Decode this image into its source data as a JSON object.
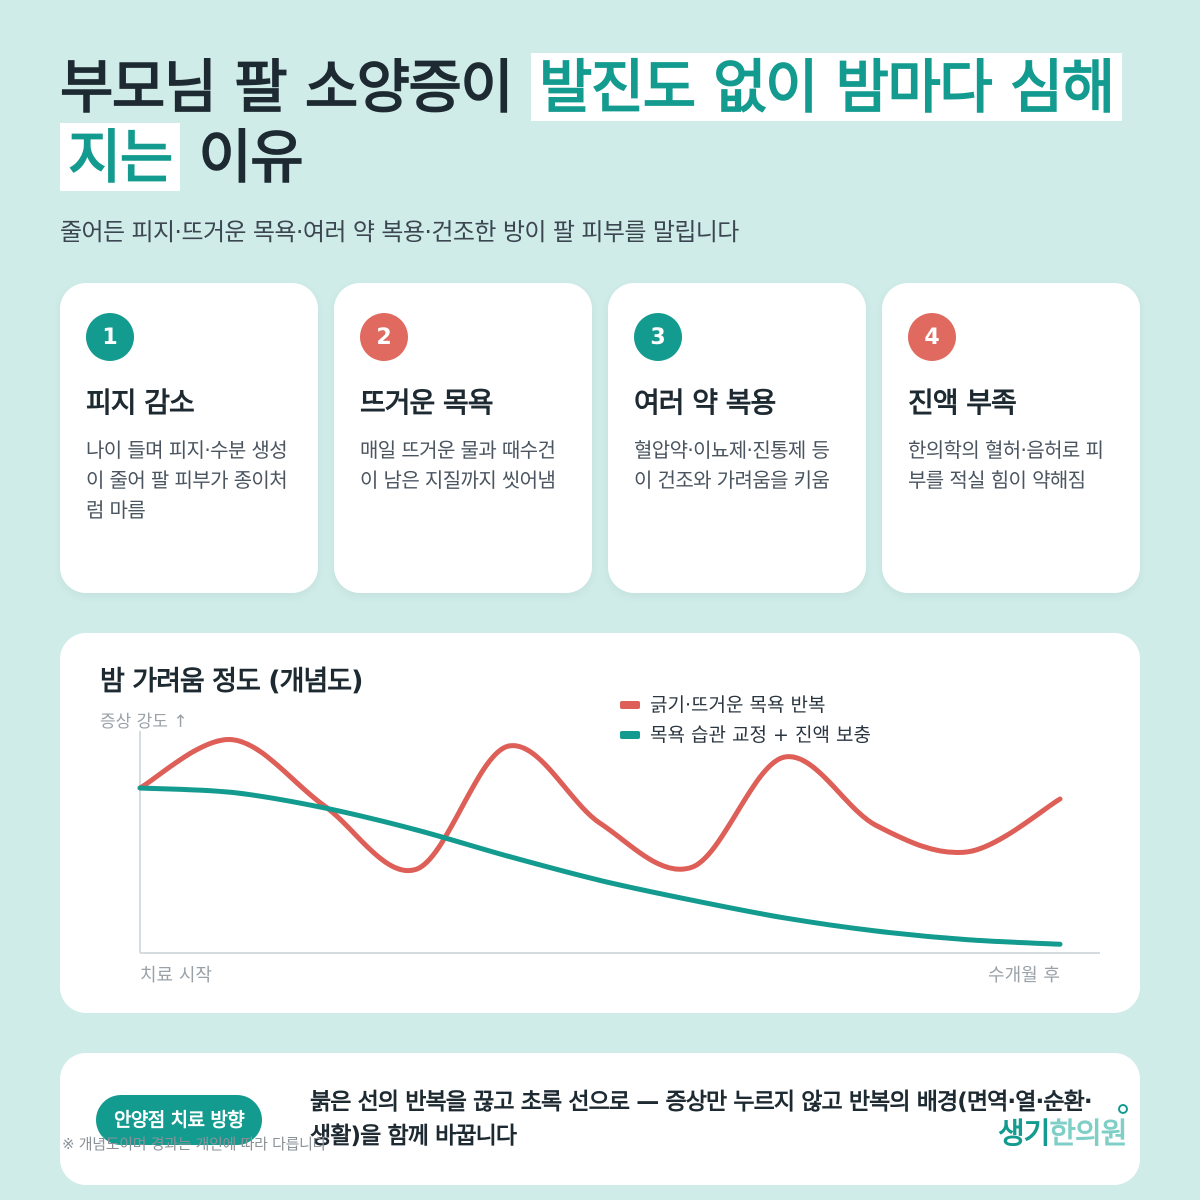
{
  "title": {
    "part1": "부모님 팔 소양증이",
    "highlight": "발진도 없이 밤마다 심해지는",
    "part2": "이유"
  },
  "subtitle": "줄어든 피지·뜨거운 목욕·여러 약 복용·건조한 방이 팔 피부를 말립니다",
  "cards": [
    {
      "num": "1",
      "title": "피지 감소",
      "desc": "나이 들며 피지·수분 생성이 줄어 팔 피부가 종이처럼 마름",
      "color": "#149b8f"
    },
    {
      "num": "2",
      "title": "뜨거운 목욕",
      "desc": "매일 뜨거운 물과 때수건이 남은 지질까지 씻어냄",
      "color": "#e06a5f"
    },
    {
      "num": "3",
      "title": "여러 약 복용",
      "desc": "혈압약·이뇨제·진통제 등이 건조와 가려움을 키움",
      "color": "#149b8f"
    },
    {
      "num": "4",
      "title": "진액 부족",
      "desc": "한의학의 혈허·음허로 피부를 적실 힘이 약해짐",
      "color": "#e06a5f"
    }
  ],
  "chart_data": {
    "type": "line",
    "title": "밤 가려움 정도 (개념도)",
    "ylabel": "증상 강도 ↑",
    "xlabel_start": "치료 시작",
    "xlabel_end": "수개월 후",
    "legend_position": "top-right",
    "x": [
      0,
      0.1,
      0.2,
      0.3,
      0.4,
      0.5,
      0.6,
      0.7,
      0.8,
      0.9,
      1.0
    ],
    "ylim": [
      0,
      1
    ],
    "series": [
      {
        "name": "긁기·뜨거운 목욕 반복",
        "color": "#dd5f57",
        "values": [
          0.75,
          0.97,
          0.67,
          0.38,
          0.94,
          0.59,
          0.39,
          0.89,
          0.58,
          0.46,
          0.7
        ]
      },
      {
        "name": "목욕 습관 교정 + 진액 보충",
        "color": "#149b8f",
        "values": [
          0.75,
          0.73,
          0.66,
          0.56,
          0.44,
          0.33,
          0.24,
          0.16,
          0.1,
          0.06,
          0.04
        ]
      }
    ]
  },
  "bottom": {
    "badge": "안양점 치료 방향",
    "text": "붉은 선의 반복을 끊고 초록 선으로 — 증상만 누르지 않고 반복의 배경(면역·열·순환·생활)을 함께 바꿉니다"
  },
  "footnote": "※ 개념도이며 경과는 개인에 따라 다릅니다",
  "logo": {
    "part1": "생기",
    "part2": "한의원"
  }
}
